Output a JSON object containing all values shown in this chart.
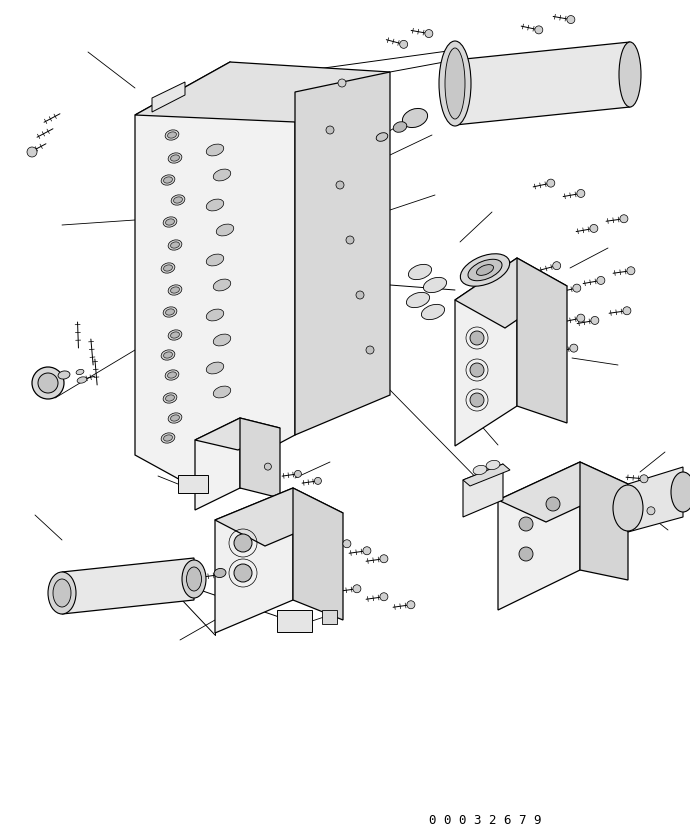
{
  "background_color": "#ffffff",
  "line_color": "#000000",
  "part_number": "00032679",
  "fig_width": 6.9,
  "fig_height": 8.35,
  "dpi": 100
}
